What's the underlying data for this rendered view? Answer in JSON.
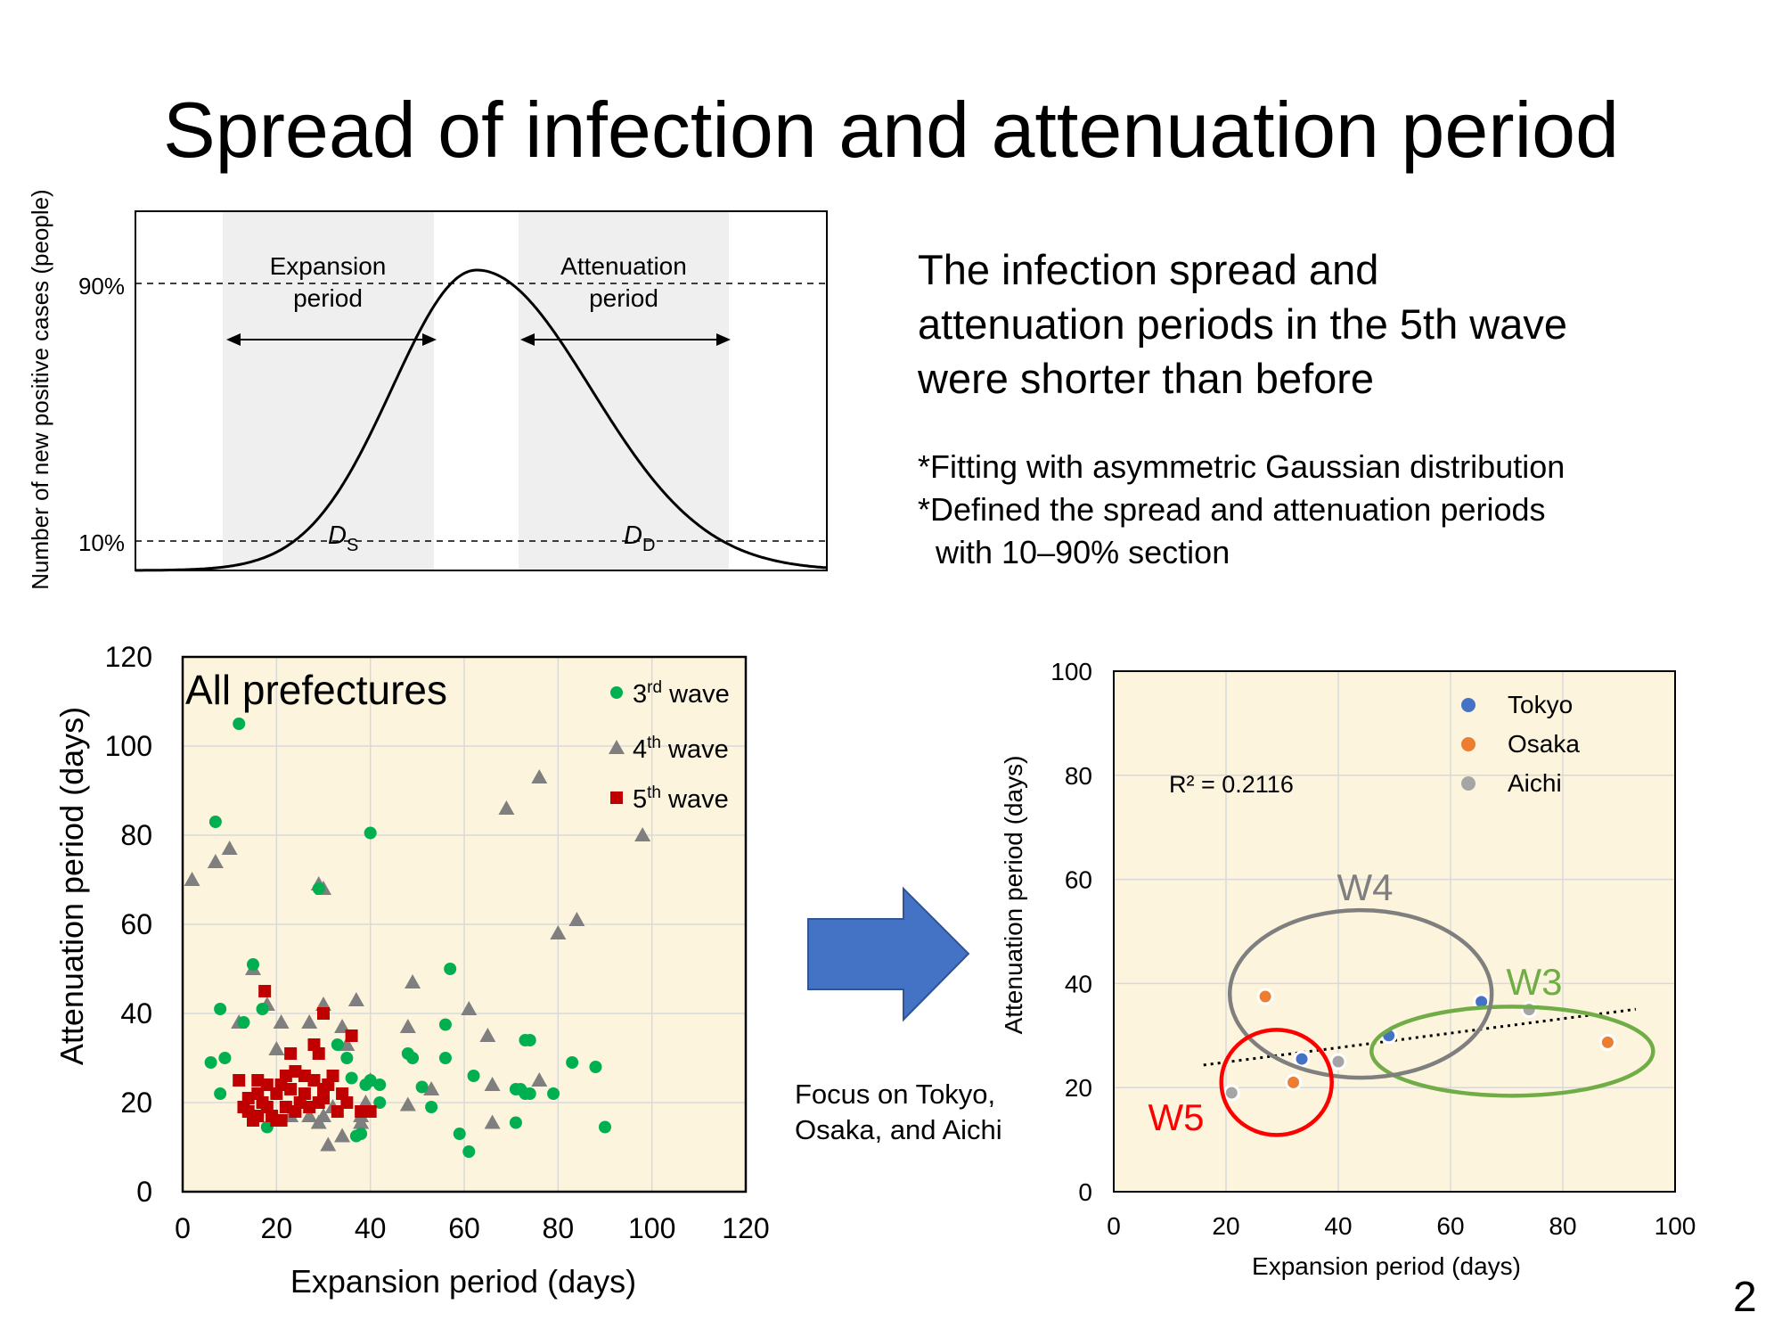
{
  "slide": {
    "title": "Spread of infection and attenuation period",
    "main_text": [
      "The infection spread and",
      "attenuation periods in the 5th wave",
      "were shorter than before"
    ],
    "notes": [
      "*Fitting with asymmetric Gaussian distribution",
      "*Defined the spread and attenuation periods",
      "  with 10–90% section"
    ],
    "focus_text": [
      "Focus on Tokyo,",
      "Osaka, and Aichi"
    ],
    "page_number": "2",
    "arrow_color": "#4472C4"
  },
  "chart_data": [
    {
      "type": "line",
      "title": "",
      "ylabel": "Number of new positive cases (people)",
      "y_ticks": [
        "90%",
        "10%"
      ],
      "regions": [
        {
          "label_lines": [
            "Expansion",
            "period"
          ],
          "symbol": "D",
          "subscript": "S"
        },
        {
          "label_lines": [
            "Attenuation",
            "period"
          ],
          "symbol": "D",
          "subscript": "D"
        }
      ],
      "curve": "asymmetric gaussian",
      "region_color": "#efefef"
    },
    {
      "type": "scatter",
      "title": "All prefectures",
      "xlabel": "Expansion period (days)",
      "ylabel": "Attenuation period (days)",
      "xlim": [
        0,
        120
      ],
      "ylim": [
        0,
        120
      ],
      "x_ticks": [
        0,
        20,
        40,
        60,
        80,
        100,
        120
      ],
      "y_ticks": [
        0,
        20,
        40,
        60,
        80,
        100,
        120
      ],
      "background": "#fdf4dd",
      "legend_position": "top-right",
      "series": [
        {
          "name": "3rd wave",
          "superscript": "rd",
          "base": "3",
          "suffix": " wave",
          "marker": "circle",
          "color": "#00b050",
          "points": [
            [
              12,
              105
            ],
            [
              7,
              83
            ],
            [
              40,
              80.5
            ],
            [
              29,
              68
            ],
            [
              15,
              51
            ],
            [
              57,
              50
            ],
            [
              8,
              41
            ],
            [
              17,
              41
            ],
            [
              13,
              38
            ],
            [
              56,
              37.5
            ],
            [
              74,
              34
            ],
            [
              73,
              34
            ],
            [
              33,
              33
            ],
            [
              6,
              29
            ],
            [
              9,
              30
            ],
            [
              48,
              31
            ],
            [
              49,
              30
            ],
            [
              35,
              30
            ],
            [
              56,
              30
            ],
            [
              83,
              29
            ],
            [
              88,
              28
            ],
            [
              62,
              26
            ],
            [
              36,
              25.5
            ],
            [
              40,
              25
            ],
            [
              42,
              24
            ],
            [
              39,
              24
            ],
            [
              51,
              23.5
            ],
            [
              72,
              23
            ],
            [
              71,
              23
            ],
            [
              73,
              22
            ],
            [
              74,
              22
            ],
            [
              79,
              22
            ],
            [
              8,
              22
            ],
            [
              42,
              20
            ],
            [
              53,
              19
            ],
            [
              37,
              12.5
            ],
            [
              38,
              13
            ],
            [
              59,
              13
            ],
            [
              61,
              9
            ],
            [
              71,
              15.5
            ],
            [
              90,
              14.5
            ],
            [
              18,
              14.5
            ]
          ]
        },
        {
          "name": "4th wave",
          "superscript": "th",
          "base": "4",
          "suffix": " wave",
          "marker": "triangle",
          "color": "#7f7f7f",
          "points": [
            [
              2,
              70
            ],
            [
              7,
              74
            ],
            [
              10,
              77
            ],
            [
              29,
              69
            ],
            [
              30,
              68
            ],
            [
              69,
              86
            ],
            [
              76,
              93
            ],
            [
              98,
              80
            ],
            [
              84,
              61
            ],
            [
              80,
              58
            ],
            [
              15,
              50
            ],
            [
              49,
              47
            ],
            [
              37,
              43
            ],
            [
              61,
              41
            ],
            [
              30,
              42
            ],
            [
              18,
              42
            ],
            [
              12,
              38
            ],
            [
              21,
              38
            ],
            [
              27,
              38
            ],
            [
              34,
              37
            ],
            [
              48,
              37
            ],
            [
              65,
              35
            ],
            [
              35,
              33
            ],
            [
              20,
              32
            ],
            [
              76,
              25
            ],
            [
              40,
              25
            ],
            [
              53,
              23
            ],
            [
              66,
              24
            ],
            [
              39,
              20
            ],
            [
              32,
              19
            ],
            [
              48,
              19.5
            ],
            [
              38,
              17
            ],
            [
              27,
              17
            ],
            [
              30,
              17
            ],
            [
              23,
              17
            ],
            [
              29,
              15.5
            ],
            [
              34,
              12.5
            ],
            [
              31,
              10.5
            ],
            [
              66,
              15.5
            ],
            [
              38,
              15.5
            ]
          ]
        },
        {
          "name": "5th wave",
          "superscript": "th",
          "base": "5",
          "suffix": " wave",
          "marker": "square",
          "color": "#c00000",
          "points": [
            [
              17.5,
              45
            ],
            [
              36,
              35
            ],
            [
              30,
              40
            ],
            [
              28,
              33
            ],
            [
              29,
              31
            ],
            [
              23,
              31
            ],
            [
              24,
              27
            ],
            [
              32,
              26
            ],
            [
              28,
              25
            ],
            [
              21,
              24
            ],
            [
              23,
              23
            ],
            [
              26,
              22
            ],
            [
              30,
              23
            ],
            [
              34,
              22
            ],
            [
              16,
              22
            ],
            [
              14,
              21
            ],
            [
              12,
              25
            ],
            [
              16,
              25
            ],
            [
              20,
              22
            ],
            [
              25,
              20
            ],
            [
              30,
              21
            ],
            [
              35,
              20
            ],
            [
              18,
              19
            ],
            [
              22,
              19
            ],
            [
              27,
              19
            ],
            [
              33,
              18
            ],
            [
              38,
              18
            ],
            [
              40,
              18
            ],
            [
              14,
              18
            ],
            [
              16,
              17
            ],
            [
              19,
              17
            ],
            [
              21,
              16
            ],
            [
              15,
              16
            ],
            [
              20,
              16
            ],
            [
              24,
              18
            ],
            [
              29,
              20
            ],
            [
              31,
              24
            ],
            [
              26,
              26
            ],
            [
              22,
              26
            ],
            [
              18,
              24
            ],
            [
              17,
              20
            ],
            [
              13,
              19
            ]
          ]
        }
      ]
    },
    {
      "type": "scatter",
      "title": "",
      "xlabel": "Expansion period (days)",
      "ylabel": "Attenuation period (days)",
      "xlim": [
        0,
        100
      ],
      "ylim": [
        0,
        100
      ],
      "x_ticks": [
        0,
        20,
        40,
        60,
        80,
        100
      ],
      "y_ticks": [
        0,
        20,
        40,
        60,
        80,
        100
      ],
      "background": "#fdf4dd",
      "legend_position": "top-right",
      "annotation": "R² = 0.2116",
      "trendline": {
        "style": "dotted",
        "x_range": [
          16,
          93
        ],
        "slope": 0.1393,
        "intercept": 22.1
      },
      "series": [
        {
          "name": "Tokyo",
          "color": "#4472c4",
          "points": [
            [
              33.5,
              25.5
            ],
            [
              49,
              30
            ],
            [
              65.5,
              36.5
            ]
          ]
        },
        {
          "name": "Osaka",
          "color": "#ed7d31",
          "points": [
            [
              27,
              37.5
            ],
            [
              32,
              21
            ],
            [
              88,
              28.7
            ]
          ]
        },
        {
          "name": "Aichi",
          "color": "#a5a5a5",
          "points": [
            [
              21,
              19
            ],
            [
              40,
              25
            ],
            [
              74,
              35
            ]
          ]
        }
      ],
      "groups": [
        {
          "label": "W3",
          "color": "#70ad47"
        },
        {
          "label": "W4",
          "color": "#7f7f7f"
        },
        {
          "label": "W5",
          "color": "#ff0000"
        }
      ]
    }
  ]
}
